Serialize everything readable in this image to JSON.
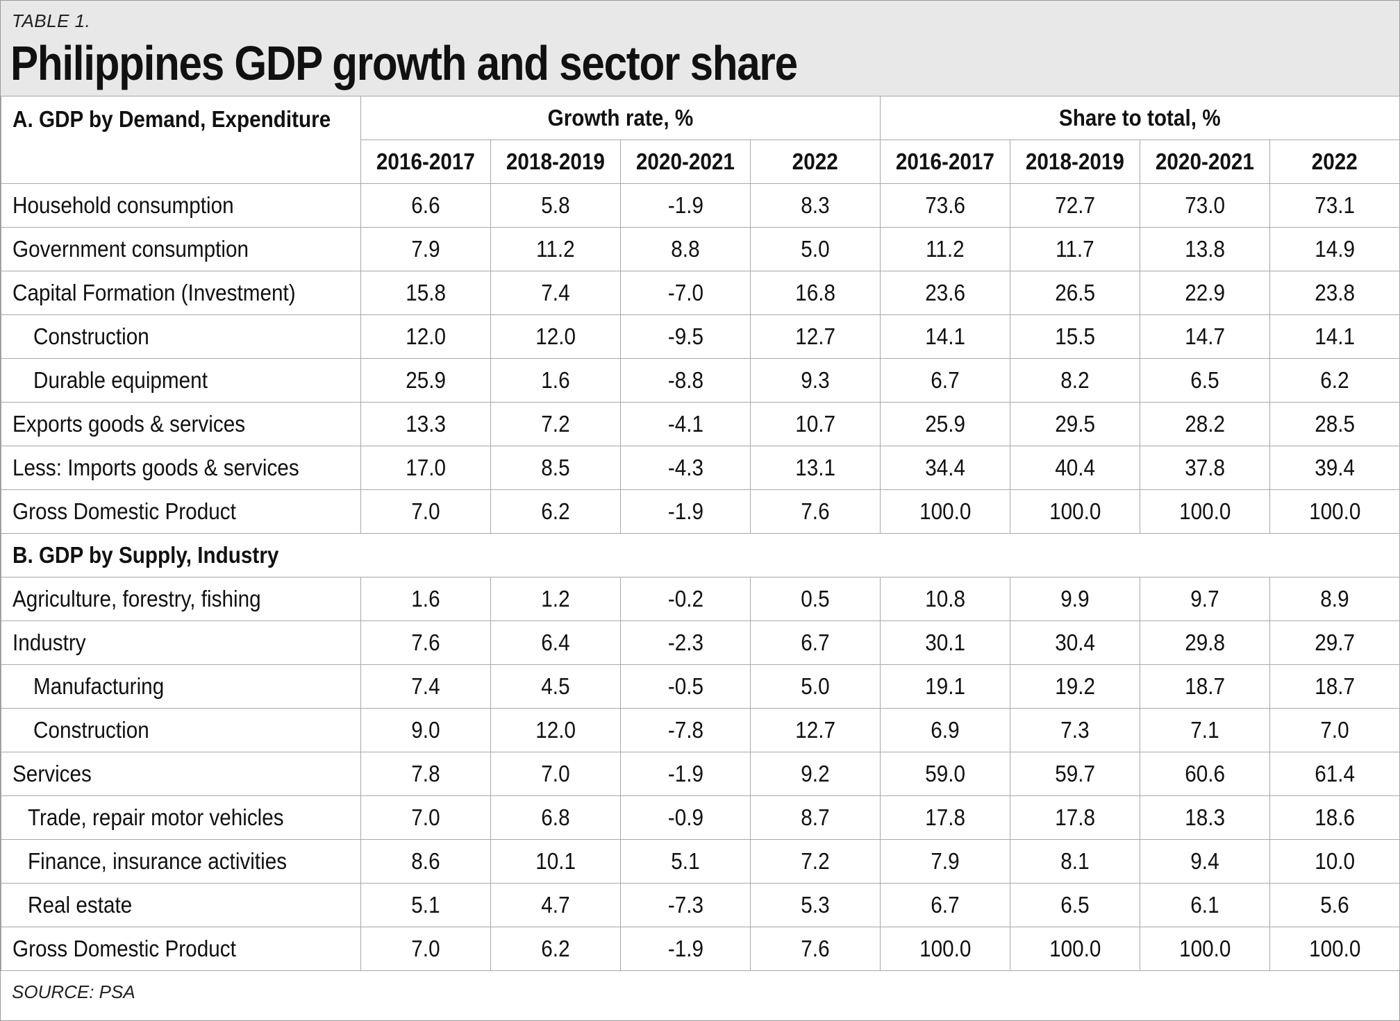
{
  "table_label": "TABLE 1.",
  "title": "Philippines GDP growth and sector share",
  "section_a": "A. GDP by Demand, Expenditure",
  "section_b": "B. GDP by Supply, Industry",
  "group_headers": {
    "growth": "Growth rate, %",
    "share": "Share to total, %"
  },
  "periods": [
    "2016-2017",
    "2018-2019",
    "2020-2021",
    "2022"
  ],
  "demand_rows": [
    {
      "label": "Household consumption",
      "indent": 0,
      "values": [
        "6.6",
        "5.8",
        "-1.9",
        "8.3",
        "73.6",
        "72.7",
        "73.0",
        "73.1"
      ]
    },
    {
      "label": "Government consumption",
      "indent": 0,
      "values": [
        "7.9",
        "11.2",
        "8.8",
        "5.0",
        "11.2",
        "11.7",
        "13.8",
        "14.9"
      ]
    },
    {
      "label": "Capital Formation (Investment)",
      "indent": 0,
      "values": [
        "15.8",
        "7.4",
        "-7.0",
        "16.8",
        "23.6",
        "26.5",
        "22.9",
        "23.8"
      ]
    },
    {
      "label": "Construction",
      "indent": 1,
      "values": [
        "12.0",
        "12.0",
        "-9.5",
        "12.7",
        "14.1",
        "15.5",
        "14.7",
        "14.1"
      ]
    },
    {
      "label": "Durable equipment",
      "indent": 1,
      "values": [
        "25.9",
        "1.6",
        "-8.8",
        "9.3",
        "6.7",
        "8.2",
        "6.5",
        "6.2"
      ]
    },
    {
      "label": "Exports goods & services",
      "indent": 0,
      "values": [
        "13.3",
        "7.2",
        "-4.1",
        "10.7",
        "25.9",
        "29.5",
        "28.2",
        "28.5"
      ]
    },
    {
      "label": "Less: Imports goods & services",
      "indent": 0,
      "values": [
        "17.0",
        "8.5",
        "-4.3",
        "13.1",
        "34.4",
        "40.4",
        "37.8",
        "39.4"
      ]
    },
    {
      "label": "Gross Domestic Product",
      "indent": 0,
      "values": [
        "7.0",
        "6.2",
        "-1.9",
        "7.6",
        "100.0",
        "100.0",
        "100.0",
        "100.0"
      ]
    }
  ],
  "supply_rows": [
    {
      "label": "Agriculture, forestry, fishing",
      "indent": 0,
      "values": [
        "1.6",
        "1.2",
        "-0.2",
        "0.5",
        "10.8",
        "9.9",
        "9.7",
        "8.9"
      ]
    },
    {
      "label": "Industry",
      "indent": 0,
      "values": [
        "7.6",
        "6.4",
        "-2.3",
        "6.7",
        "30.1",
        "30.4",
        "29.8",
        "29.7"
      ]
    },
    {
      "label": "Manufacturing",
      "indent": 1,
      "values": [
        "7.4",
        "4.5",
        "-0.5",
        "5.0",
        "19.1",
        "19.2",
        "18.7",
        "18.7"
      ]
    },
    {
      "label": "Construction",
      "indent": 1,
      "values": [
        "9.0",
        "12.0",
        "-7.8",
        "12.7",
        "6.9",
        "7.3",
        "7.1",
        "7.0"
      ]
    },
    {
      "label": "Services",
      "indent": 0,
      "values": [
        "7.8",
        "7.0",
        "-1.9",
        "9.2",
        "59.0",
        "59.7",
        "60.6",
        "61.4"
      ]
    },
    {
      "label": "Trade, repair motor vehicles",
      "indent": 2,
      "values": [
        "7.0",
        "6.8",
        "-0.9",
        "8.7",
        "17.8",
        "17.8",
        "18.3",
        "18.6"
      ]
    },
    {
      "label": "Finance, insurance activities",
      "indent": 2,
      "values": [
        "8.6",
        "10.1",
        "5.1",
        "7.2",
        "7.9",
        "8.1",
        "9.4",
        "10.0"
      ]
    },
    {
      "label": "Real estate",
      "indent": 2,
      "values": [
        "5.1",
        "4.7",
        "-7.3",
        "5.3",
        "6.7",
        "6.5",
        "6.1",
        "5.6"
      ]
    },
    {
      "label": "Gross Domestic Product",
      "indent": 0,
      "values": [
        "7.0",
        "6.2",
        "-1.9",
        "7.6",
        "100.0",
        "100.0",
        "100.0",
        "100.0"
      ]
    }
  ],
  "source": "SOURCE: PSA",
  "colors": {
    "header_bg": "#e8e8e8",
    "grid": "#a8a8a8",
    "text": "#111111"
  }
}
